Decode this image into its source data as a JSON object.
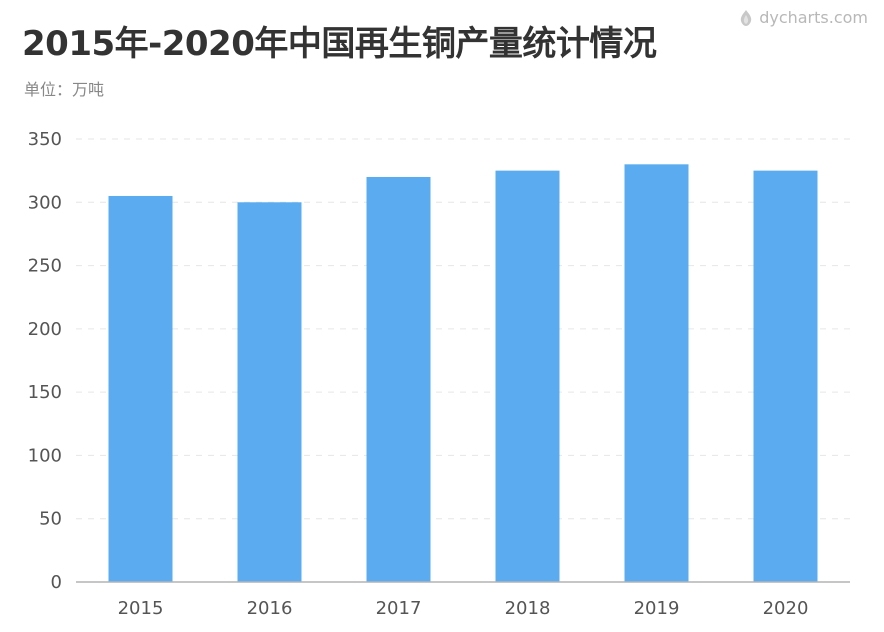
{
  "title": "2015年-2020年中国再生铜产量统计情况",
  "subtitle": "单位：万吨",
  "watermark": "dycharts.com",
  "colors": {
    "bar": "#5aabef",
    "grid": "#e6e6e6",
    "axis": "#b3b3b3",
    "text": "#333333"
  },
  "chart_data": {
    "type": "bar",
    "categories": [
      "2015",
      "2016",
      "2017",
      "2018",
      "2019",
      "2020"
    ],
    "values": [
      305,
      300,
      320,
      325,
      330,
      325
    ],
    "ylim": [
      0,
      350
    ],
    "yticks": [
      0,
      50,
      100,
      150,
      200,
      250,
      300,
      350
    ],
    "grid": true,
    "legend": "none"
  }
}
